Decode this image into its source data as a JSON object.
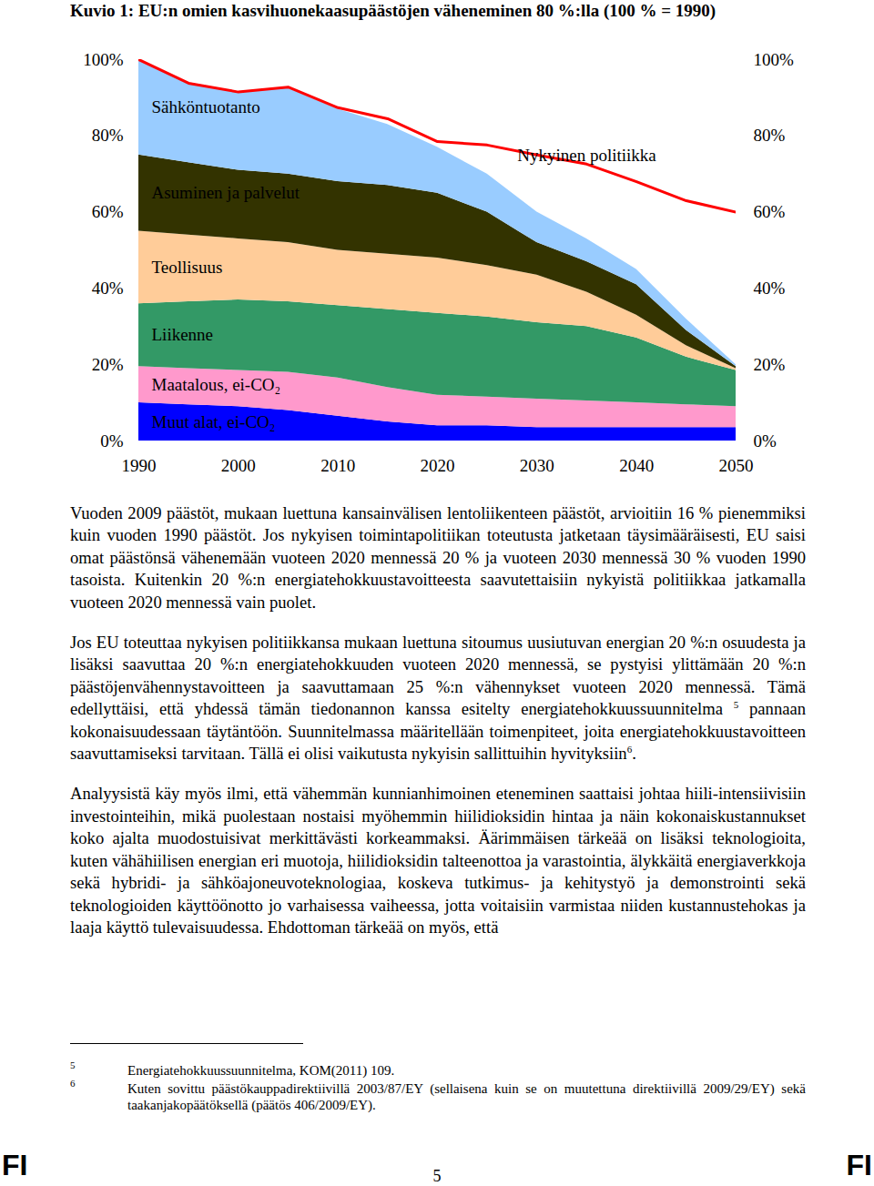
{
  "chart_data": {
    "type": "area",
    "title": "Kuvio 1: EU:n omien kasvihuonekaasupäästöjen väheneminen 80 %:lla (100 % = 1990)",
    "stacked": true,
    "x": [
      1990,
      1995,
      2000,
      2005,
      2010,
      2015,
      2020,
      2025,
      2030,
      2035,
      2040,
      2045,
      2050
    ],
    "xlim": [
      1990,
      2050
    ],
    "xticks": [
      1990,
      2000,
      2010,
      2020,
      2030,
      2040,
      2050
    ],
    "ylim": [
      0,
      100
    ],
    "yticks": [
      {
        "value": 0,
        "label": "0%"
      },
      {
        "value": 20,
        "label": "20%"
      },
      {
        "value": 40,
        "label": "40%"
      },
      {
        "value": 60,
        "label": "60%"
      },
      {
        "value": 80,
        "label": "80%"
      },
      {
        "value": 100,
        "label": "100%"
      }
    ],
    "y2lim": [
      0,
      100
    ],
    "y2ticks": [
      {
        "value": 0,
        "label": "0%"
      },
      {
        "value": 20,
        "label": "20%"
      },
      {
        "value": 40,
        "label": "40%"
      },
      {
        "value": 60,
        "label": "60%"
      },
      {
        "value": 80,
        "label": "80%"
      },
      {
        "value": 100,
        "label": "100%"
      }
    ],
    "series": [
      {
        "name": "Muut alat, ei-CO₂",
        "type": "area",
        "color": "#0000ff",
        "values": [
          10,
          9.5,
          9,
          8,
          6.5,
          5,
          4,
          4,
          3.5,
          3.5,
          3.5,
          3.5,
          3.5
        ]
      },
      {
        "name": "Maatalous, ei-CO₂",
        "type": "area",
        "color": "#ff99cc",
        "values": [
          9.5,
          9.5,
          9.5,
          10,
          10,
          9,
          8,
          7.5,
          7.5,
          7,
          6.5,
          6,
          5.5
        ]
      },
      {
        "name": "Liikenne",
        "type": "area",
        "color": "#339966",
        "values": [
          16.5,
          17.5,
          18.5,
          18.5,
          19,
          20.5,
          21.5,
          21,
          20,
          19.5,
          17,
          12.5,
          9.5
        ]
      },
      {
        "name": "Teollisuus",
        "type": "area",
        "color": "#ffcc99",
        "values": [
          19,
          17.5,
          16,
          15.5,
          14.5,
          14.5,
          14.5,
          13.5,
          12.5,
          9,
          6,
          3,
          0.5
        ]
      },
      {
        "name": "Asuminen ja palvelut",
        "type": "area",
        "color": "#333300",
        "values": [
          20,
          19,
          18,
          18,
          18,
          18,
          17,
          14,
          8.5,
          8,
          8,
          4,
          0.5
        ]
      },
      {
        "name": "Sähköntuotanto",
        "type": "area",
        "color": "#99ccff",
        "values": [
          25,
          21,
          20.5,
          22.5,
          19,
          16,
          12,
          10,
          8,
          6,
          4,
          3,
          0.5
        ]
      },
      {
        "name": "Nykyinen politiikka",
        "type": "line",
        "color": "#ff0000",
        "line_style": "solid",
        "values": [
          100,
          93.8,
          91.5,
          92.8,
          87.4,
          84.5,
          78.5,
          77.6,
          75,
          72.6,
          68,
          63,
          60
        ]
      }
    ]
  },
  "paragraphs": [
    [
      "Vuoden 2009 päästöt, mukaan luettuna kansainvälisen lentoliikenteen päästöt, arvioitiin 16 % pienemmiksi kuin vuoden 1990 päästöt. Jos nykyisen toimintapolitiikan toteutusta jatketaan täysimääräisesti, EU saisi omat päästönsä vähenemään vuoteen 2020 mennessä 20 % ja vuoteen 2030 mennessä 30 % vuoden 1990 tasoista. Kuitenkin 20 %:n energiatehokkuustavoitteesta saavutettaisiin nykyistä politiikkaa jatkamalla vuoteen 2020 mennessä vain puolet."
    ],
    [
      "Jos EU toteuttaa nykyisen politiikkansa mukaan luettuna sitoumus uusiutuvan energian 20 %:n osuudesta ja lisäksi saavuttaa 20 %:n energiatehokkuuden vuoteen 2020 mennessä, se pystyisi ylittämään 20 %:n päästöjenvähennystavoitteen ja saavuttamaan 25 %:n vähennykset vuoteen 2020 mennessä. Tämä edellyttäisi, että yhdessä tämän tiedonannon kanssa esitelty energiatehokkuussuunnitelma ",
      {
        "sup": "5"
      },
      " pannaan kokonaisuudessaan täytäntöön. Suunnitelmassa määritellään toimenpiteet, joita energiatehokkuustavoitteen saavuttamiseksi tarvitaan. Tällä ei olisi vaikutusta nykyisin sallittuihin hyvityksiin",
      {
        "sup": "6"
      },
      "."
    ],
    [
      "Analyysistä käy myös ilmi, että vähemmän kunnianhimoinen eteneminen saattaisi johtaa hiili-intensiivisiin investointeihin, mikä puolestaan nostaisi myöhemmin hiilidioksidin hintaa ja näin kokonaiskustannukset koko ajalta muodostuisivat merkittävästi korkeammaksi. Äärimmäisen tärkeää on lisäksi teknologioita, kuten vähähiilisen energian eri muotoja, hiilidioksidin talteenottoa ja varastointia, älykkäitä energiaverkkoja sekä hybridi- ja sähköajoneuvoteknologiaa, koskeva tutkimus- ja kehitystyö ja demonstrointi sekä teknologioiden käyttöönotto jo varhaisessa vaiheessa, jotta voitaisiin varmistaa niiden kustannustehokas ja laaja käyttö tulevaisuudessa. Ehdottoman tärkeää on myös, että"
    ]
  ],
  "footnotes": [
    {
      "mark": "5",
      "text": "Energiatehokkuussuunnitelma, KOM(2011) 109."
    },
    {
      "mark": "6",
      "text": "Kuten sovittu päästökauppadirektiivillä 2003/87/EY (sellaisena kuin se on muutettuna direktiivillä 2009/29/EY) sekä taakanjakopäätöksellä (päätös 406/2009/EY)."
    }
  ],
  "footer": {
    "left": "FI",
    "page": "5",
    "right": "FI"
  }
}
